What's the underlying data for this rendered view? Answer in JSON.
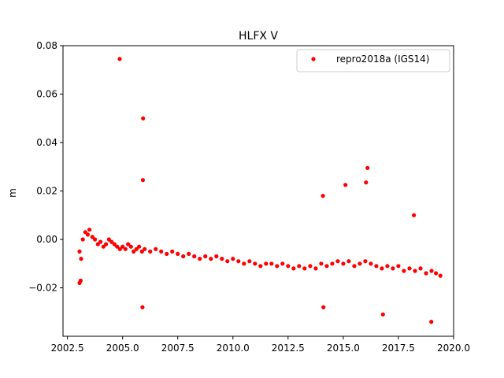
{
  "chart_data": {
    "type": "scatter",
    "title": "HLFX V",
    "xlabel": "",
    "ylabel": "m",
    "xlim": [
      2002.3,
      2020.0
    ],
    "ylim": [
      -0.04,
      0.08
    ],
    "x_ticks": [
      2002.5,
      2005.0,
      2007.5,
      2010.0,
      2012.5,
      2015.0,
      2017.5,
      2020.0
    ],
    "x_tick_labels": [
      "2002.5",
      "2005.0",
      "2007.5",
      "2010.0",
      "2012.5",
      "2015.0",
      "2017.5",
      "2020.0"
    ],
    "y_ticks": [
      -0.02,
      0.0,
      0.02,
      0.04,
      0.06,
      0.08
    ],
    "y_tick_labels": [
      "−0.02",
      "0.00",
      "0.02",
      "0.04",
      "0.06",
      "0.08"
    ],
    "grid": false,
    "legend_position": "top-right",
    "series": [
      {
        "name": "repro2018a (IGS14)",
        "color": "#ff0000",
        "marker": "circle",
        "x": [
          2003.05,
          2003.12,
          2003.2,
          2003.31,
          2003.42,
          2003.5,
          2003.63,
          2003.75,
          2003.88,
          2004.0,
          2004.13,
          2004.25,
          2004.38,
          2004.5,
          2004.63,
          2004.75,
          2004.88,
          2005.0,
          2005.13,
          2005.25,
          2005.38,
          2005.5,
          2005.63,
          2005.75,
          2005.88,
          2006.0,
          2006.25,
          2006.5,
          2006.75,
          2007.0,
          2007.25,
          2007.5,
          2007.75,
          2008.0,
          2008.25,
          2008.5,
          2008.75,
          2009.0,
          2009.25,
          2009.5,
          2009.75,
          2010.0,
          2010.25,
          2010.5,
          2010.75,
          2011.0,
          2011.25,
          2011.5,
          2011.75,
          2012.0,
          2012.25,
          2012.5,
          2012.75,
          2013.0,
          2013.25,
          2013.5,
          2013.75,
          2014.0,
          2014.25,
          2014.5,
          2014.75,
          2015.0,
          2015.25,
          2015.5,
          2015.75,
          2016.0,
          2016.25,
          2016.5,
          2016.75,
          2017.0,
          2017.25,
          2017.5,
          2017.75,
          2018.0,
          2018.25,
          2018.5,
          2018.75,
          2019.0,
          2019.2,
          2019.4,
          2004.87,
          2005.93,
          2005.92,
          2005.9,
          2016.1,
          2015.1,
          2016.03,
          2014.08,
          2018.2,
          2003.1,
          2003.05,
          2018.99,
          2016.8,
          2014.1
        ],
        "y": [
          -0.005,
          -0.008,
          0.0,
          0.003,
          0.002,
          0.004,
          0.001,
          0.0,
          -0.002,
          -0.001,
          -0.003,
          -0.002,
          0.0,
          -0.001,
          -0.002,
          -0.003,
          -0.004,
          -0.003,
          -0.004,
          -0.002,
          -0.003,
          -0.005,
          -0.004,
          -0.003,
          -0.005,
          -0.004,
          -0.005,
          -0.004,
          -0.005,
          -0.006,
          -0.005,
          -0.006,
          -0.007,
          -0.006,
          -0.007,
          -0.008,
          -0.007,
          -0.008,
          -0.007,
          -0.008,
          -0.009,
          -0.008,
          -0.009,
          -0.01,
          -0.009,
          -0.01,
          -0.011,
          -0.01,
          -0.01,
          -0.011,
          -0.01,
          -0.011,
          -0.012,
          -0.011,
          -0.012,
          -0.011,
          -0.012,
          -0.01,
          -0.011,
          -0.01,
          -0.009,
          -0.01,
          -0.009,
          -0.011,
          -0.01,
          -0.009,
          -0.01,
          -0.011,
          -0.012,
          -0.011,
          -0.012,
          -0.011,
          -0.013,
          -0.012,
          -0.013,
          -0.012,
          -0.014,
          -0.013,
          -0.014,
          -0.015,
          0.0745,
          0.05,
          0.0245,
          -0.028,
          0.0295,
          0.0225,
          0.0235,
          0.018,
          0.01,
          -0.017,
          -0.018,
          -0.034,
          -0.031,
          -0.028
        ]
      }
    ]
  }
}
